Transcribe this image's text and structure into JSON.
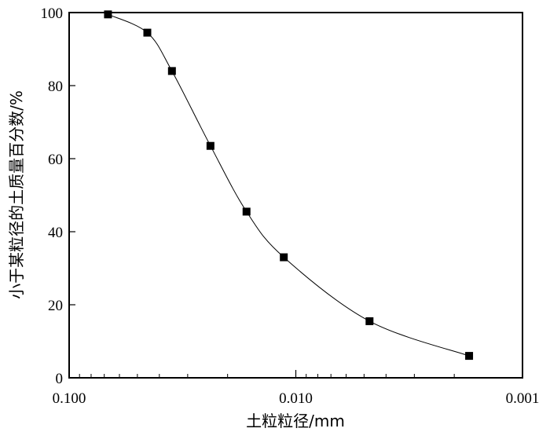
{
  "chart_data": {
    "type": "scatter",
    "xlabel": "土粒粒径/mm",
    "ylabel": "小于某粒径的土质量百分数/%",
    "x_scale": "log",
    "x_reversed": true,
    "xlim": [
      0.1,
      0.001
    ],
    "ylim": [
      0,
      100
    ],
    "x_ticks": [
      {
        "value": 0.1,
        "label": "0.100"
      },
      {
        "value": 0.01,
        "label": "0.010"
      },
      {
        "value": 0.001,
        "label": "0.001"
      }
    ],
    "y_ticks": [
      {
        "value": 0,
        "label": "0"
      },
      {
        "value": 20,
        "label": "20"
      },
      {
        "value": 40,
        "label": "40"
      },
      {
        "value": 60,
        "label": "60"
      },
      {
        "value": 80,
        "label": "80"
      },
      {
        "value": 100,
        "label": "100"
      }
    ],
    "grid": false,
    "series": [
      {
        "marker": "square",
        "fitted_curve": true,
        "x": [
          0.0674,
          0.0452,
          0.0352,
          0.0238,
          0.0165,
          0.0113,
          0.00473,
          0.00172
        ],
        "y": [
          99.5,
          94.5,
          84.0,
          63.5,
          45.5,
          33.0,
          15.5,
          6.0
        ]
      }
    ]
  }
}
